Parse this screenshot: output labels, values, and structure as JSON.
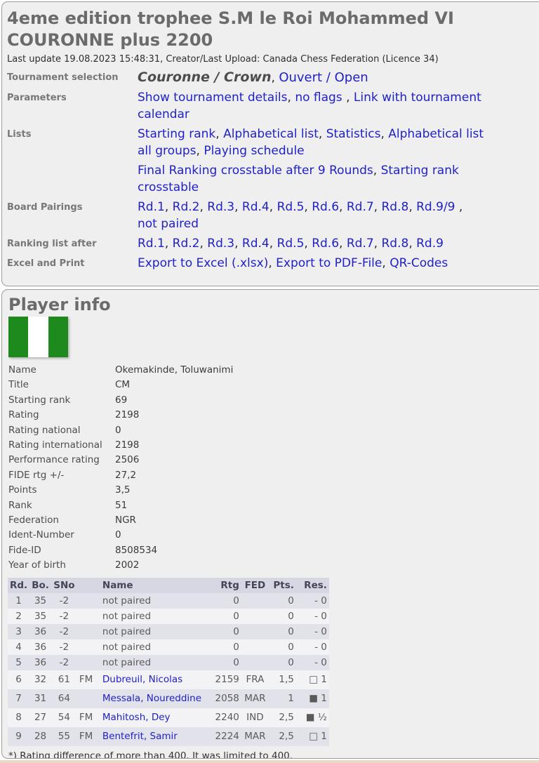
{
  "tournament": {
    "title": "4eme edition trophee S.M le Roi Mohammed VI COURONNE plus 2200",
    "last_update": "Last update 19.08.2023 15:48:31, Creator/Last Upload: Canada Chess Federation (Licence 34)"
  },
  "nav_rows": [
    {
      "label": "Tournament selection",
      "parts": [
        {
          "kind": "current",
          "text": "Couronne / Crown"
        },
        {
          "kind": "sep",
          "text": ", "
        },
        {
          "kind": "biglink",
          "text": "Ouvert / Open",
          "name": "link-ouvert-open"
        }
      ]
    },
    {
      "label": "Parameters",
      "parts": [
        {
          "kind": "link",
          "text": "Show tournament details",
          "name": "link-show-tournament-details"
        },
        {
          "kind": "sep",
          "text": ", "
        },
        {
          "kind": "link",
          "text": "no flags",
          "name": "link-no-flags"
        },
        {
          "kind": "sep",
          "text": " , "
        },
        {
          "kind": "link",
          "text": "Link with tournament",
          "name": "link-tournament-calendar"
        },
        {
          "kind": "br"
        },
        {
          "kind": "link",
          "text": "calendar",
          "name": "link-tournament-calendar"
        }
      ]
    },
    {
      "label": "Lists",
      "parts": [
        {
          "kind": "link",
          "text": "Starting rank",
          "name": "link-starting-rank"
        },
        {
          "kind": "sep",
          "text": ", "
        },
        {
          "kind": "link",
          "text": "Alphabetical list",
          "name": "link-alphabetical-list"
        },
        {
          "kind": "sep",
          "text": ", "
        },
        {
          "kind": "link",
          "text": "Statistics",
          "name": "link-statistics"
        },
        {
          "kind": "sep",
          "text": ", "
        },
        {
          "kind": "link",
          "text": "Alphabetical list",
          "name": "link-alphabetical-list-all-groups"
        },
        {
          "kind": "br"
        },
        {
          "kind": "link",
          "text": "all groups",
          "name": "link-alphabetical-list-all-groups"
        },
        {
          "kind": "sep",
          "text": ", "
        },
        {
          "kind": "link",
          "text": "Playing schedule",
          "name": "link-playing-schedule"
        }
      ]
    },
    {
      "label": "",
      "parts": [
        {
          "kind": "link",
          "text": "Final Ranking crosstable after 9 Rounds",
          "name": "link-final-ranking-crosstable"
        },
        {
          "kind": "sep",
          "text": ", "
        },
        {
          "kind": "link",
          "text": "Starting rank",
          "name": "link-starting-rank-crosstable"
        },
        {
          "kind": "br"
        },
        {
          "kind": "link",
          "text": "crosstable",
          "name": "link-starting-rank-crosstable"
        }
      ]
    },
    {
      "label": "Board Pairings",
      "parts": [
        {
          "kind": "link",
          "text": "Rd.1",
          "name": "link-board-rd1"
        },
        {
          "kind": "sep",
          "text": ", "
        },
        {
          "kind": "link",
          "text": "Rd.2",
          "name": "link-board-rd2"
        },
        {
          "kind": "sep",
          "text": ", "
        },
        {
          "kind": "link",
          "text": "Rd.3",
          "name": "link-board-rd3"
        },
        {
          "kind": "sep",
          "text": ", "
        },
        {
          "kind": "link",
          "text": "Rd.4",
          "name": "link-board-rd4"
        },
        {
          "kind": "sep",
          "text": ", "
        },
        {
          "kind": "link",
          "text": "Rd.5",
          "name": "link-board-rd5"
        },
        {
          "kind": "sep",
          "text": ", "
        },
        {
          "kind": "link",
          "text": "Rd.6",
          "name": "link-board-rd6"
        },
        {
          "kind": "sep",
          "text": ", "
        },
        {
          "kind": "link",
          "text": "Rd.7",
          "name": "link-board-rd7"
        },
        {
          "kind": "sep",
          "text": ", "
        },
        {
          "kind": "link",
          "text": "Rd.8",
          "name": "link-board-rd8"
        },
        {
          "kind": "sep",
          "text": ", "
        },
        {
          "kind": "link",
          "text": "Rd.9/9",
          "name": "link-board-rd9"
        },
        {
          "kind": "sep",
          "text": " , "
        },
        {
          "kind": "br"
        },
        {
          "kind": "link",
          "text": "not paired",
          "name": "link-not-paired"
        }
      ]
    },
    {
      "label": "Ranking list after",
      "parts": [
        {
          "kind": "link",
          "text": "Rd.1",
          "name": "link-ranking-rd1"
        },
        {
          "kind": "sep",
          "text": ", "
        },
        {
          "kind": "link",
          "text": "Rd.2",
          "name": "link-ranking-rd2"
        },
        {
          "kind": "sep",
          "text": ", "
        },
        {
          "kind": "link",
          "text": "Rd.3",
          "name": "link-ranking-rd3"
        },
        {
          "kind": "sep",
          "text": ", "
        },
        {
          "kind": "link",
          "text": "Rd.4",
          "name": "link-ranking-rd4"
        },
        {
          "kind": "sep",
          "text": ", "
        },
        {
          "kind": "link",
          "text": "Rd.5",
          "name": "link-ranking-rd5"
        },
        {
          "kind": "sep",
          "text": ", "
        },
        {
          "kind": "link",
          "text": "Rd.6",
          "name": "link-ranking-rd6"
        },
        {
          "kind": "sep",
          "text": ", "
        },
        {
          "kind": "link",
          "text": "Rd.7",
          "name": "link-ranking-rd7"
        },
        {
          "kind": "sep",
          "text": ", "
        },
        {
          "kind": "link",
          "text": "Rd.8",
          "name": "link-ranking-rd8"
        },
        {
          "kind": "sep",
          "text": ", "
        },
        {
          "kind": "link",
          "text": "Rd.9",
          "name": "link-ranking-rd9"
        }
      ]
    },
    {
      "label": "Excel and Print",
      "parts": [
        {
          "kind": "link",
          "text": "Export to Excel (.xlsx)",
          "name": "link-export-excel"
        },
        {
          "kind": "sep",
          "text": ", "
        },
        {
          "kind": "link",
          "text": "Export to PDF-File",
          "name": "link-export-pdf"
        },
        {
          "kind": "sep",
          "text": ", "
        },
        {
          "kind": "link",
          "text": "QR-Codes",
          "name": "link-qr-codes"
        }
      ]
    }
  ],
  "player": {
    "heading": "Player info",
    "flag": "nigeria-flag",
    "fields": [
      {
        "label": "Name",
        "value": "Okemakinde, Toluwanimi"
      },
      {
        "label": "Title",
        "value": "CM"
      },
      {
        "label": "Starting rank",
        "value": "69"
      },
      {
        "label": "Rating",
        "value": "2198"
      },
      {
        "label": "Rating national",
        "value": "0"
      },
      {
        "label": "Rating international",
        "value": "2198"
      },
      {
        "label": "Performance rating",
        "value": "2506"
      },
      {
        "label": "FIDE rtg +/-",
        "value": "27,2"
      },
      {
        "label": "Points",
        "value": "3,5"
      },
      {
        "label": "Rank",
        "value": "51"
      },
      {
        "label": "Federation",
        "value": "NGR"
      },
      {
        "label": "Ident-Number",
        "value": "0"
      },
      {
        "label": "Fide-ID",
        "value": "8508534"
      },
      {
        "label": "Year of birth",
        "value": "2002"
      }
    ]
  },
  "results": {
    "headers": [
      "Rd.",
      "Bo.",
      "SNo",
      "",
      "Name",
      "Rtg",
      "FED",
      "Pts.",
      "Res."
    ],
    "rows": [
      {
        "rd": "1",
        "bo": "35",
        "sno": "-2",
        "title": "",
        "name": "not paired",
        "link": false,
        "rtg": "0",
        "fed": "",
        "pts": "0",
        "res_sym": "-",
        "res_val": "0",
        "tall": false
      },
      {
        "rd": "2",
        "bo": "35",
        "sno": "-2",
        "title": "",
        "name": "not paired",
        "link": false,
        "rtg": "0",
        "fed": "",
        "pts": "0",
        "res_sym": "-",
        "res_val": "0",
        "tall": false
      },
      {
        "rd": "3",
        "bo": "36",
        "sno": "-2",
        "title": "",
        "name": "not paired",
        "link": false,
        "rtg": "0",
        "fed": "",
        "pts": "0",
        "res_sym": "-",
        "res_val": "0",
        "tall": false
      },
      {
        "rd": "4",
        "bo": "36",
        "sno": "-2",
        "title": "",
        "name": "not paired",
        "link": false,
        "rtg": "0",
        "fed": "",
        "pts": "0",
        "res_sym": "-",
        "res_val": "0",
        "tall": false
      },
      {
        "rd": "5",
        "bo": "36",
        "sno": "-2",
        "title": "",
        "name": "not paired",
        "link": false,
        "rtg": "0",
        "fed": "",
        "pts": "0",
        "res_sym": "-",
        "res_val": "0",
        "tall": false
      },
      {
        "rd": "6",
        "bo": "32",
        "sno": "61",
        "title": "FM",
        "name": "Dubreuil, Nicolas",
        "link": true,
        "rtg": "2159",
        "fed": "FRA",
        "pts": "1,5",
        "res_sym": "□",
        "res_val": "1",
        "tall": true
      },
      {
        "rd": "7",
        "bo": "31",
        "sno": "64",
        "title": "",
        "name": "Messala, Noureddine",
        "link": true,
        "rtg": "2058",
        "fed": "MAR",
        "pts": "1",
        "res_sym": "■",
        "res_val": "1",
        "tall": true
      },
      {
        "rd": "8",
        "bo": "27",
        "sno": "54",
        "title": "FM",
        "name": "Mahitosh, Dey",
        "link": true,
        "rtg": "2240",
        "fed": "IND",
        "pts": "2,5",
        "res_sym": "■",
        "res_val": "½",
        "tall": true
      },
      {
        "rd": "9",
        "bo": "28",
        "sno": "55",
        "title": "FM",
        "name": "Bentefrit, Samir",
        "link": true,
        "rtg": "2224",
        "fed": "MAR",
        "pts": "2,5",
        "res_sym": "□",
        "res_val": "1",
        "tall": true
      }
    ],
    "footnote": "*) Rating difference of more than 400. It was limited to 400."
  },
  "colors": {
    "link_blue": "#2121c8",
    "panel_bg": "#efefef",
    "panel_border": "#9c9c9c",
    "table_header_bg": "#d7d7e3",
    "row_odd": "#e2e2eb",
    "row_even": "#f3f3f5",
    "flag_green": "#1e8a1e",
    "flag_white": "#ffffff",
    "bottom_strip": "#ead9c4",
    "title_gray": "#6b6b6b"
  }
}
